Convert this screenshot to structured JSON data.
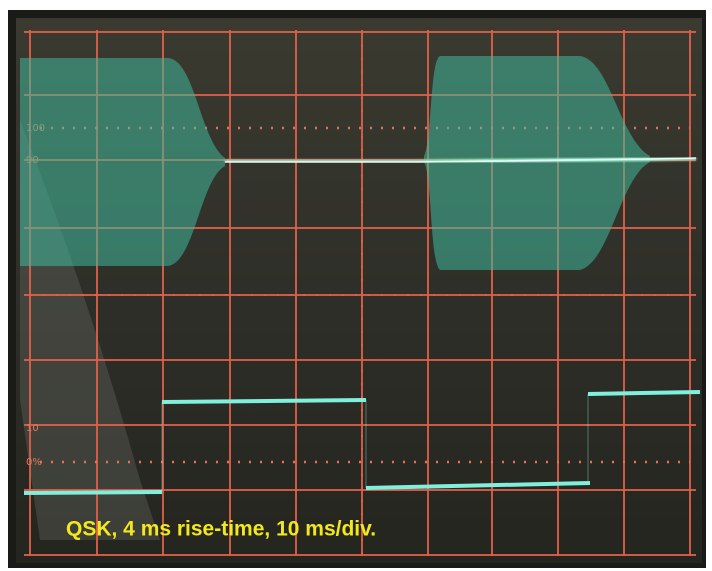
{
  "caption": "QSK, 4 ms rise-time, 10 ms/div.",
  "graticule_labels": [
    "100",
    "90",
    "10",
    "0%"
  ]
}
